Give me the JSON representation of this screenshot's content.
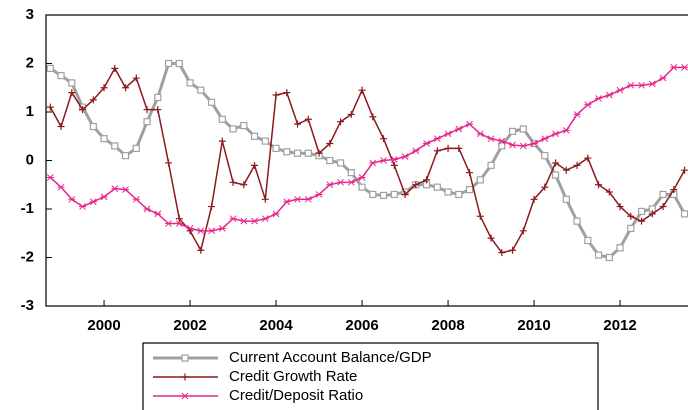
{
  "chart_data": {
    "type": "line",
    "x": [
      1998.75,
      1999,
      1999.25,
      1999.5,
      1999.75,
      2000,
      2000.25,
      2000.5,
      2000.75,
      2001,
      2001.25,
      2001.5,
      2001.75,
      2002,
      2002.25,
      2002.5,
      2002.75,
      2003,
      2003.25,
      2003.5,
      2003.75,
      2004,
      2004.25,
      2004.5,
      2004.75,
      2005,
      2005.25,
      2005.5,
      2005.75,
      2006,
      2006.25,
      2006.5,
      2006.75,
      2007,
      2007.25,
      2007.5,
      2007.75,
      2008,
      2008.25,
      2008.5,
      2008.75,
      2009,
      2009.25,
      2009.5,
      2009.75,
      2010,
      2010.25,
      2010.5,
      2010.75,
      2011,
      2011.25,
      2011.5,
      2011.75,
      2012,
      2012.25,
      2012.5,
      2012.75,
      2013,
      2013.25,
      2013.5
    ],
    "series": [
      {
        "name": "Current Account Balance/GDP",
        "color": "#a0a0a0",
        "marker": "square",
        "values": [
          1.9,
          1.75,
          1.6,
          1.1,
          0.7,
          0.45,
          0.3,
          0.1,
          0.25,
          0.8,
          1.3,
          2.0,
          2.0,
          1.6,
          1.45,
          1.2,
          0.85,
          0.65,
          0.72,
          0.5,
          0.4,
          0.25,
          0.18,
          0.15,
          0.15,
          0.1,
          0.0,
          -0.05,
          -0.25,
          -0.55,
          -0.7,
          -0.72,
          -0.7,
          -0.65,
          -0.5,
          -0.5,
          -0.55,
          -0.65,
          -0.7,
          -0.6,
          -0.4,
          -0.1,
          0.3,
          0.6,
          0.65,
          0.35,
          0.1,
          -0.3,
          -0.8,
          -1.25,
          -1.65,
          -1.95,
          -2.0,
          -1.8,
          -1.4,
          -1.05,
          -1.0,
          -0.7,
          -0.7,
          -1.1
        ]
      },
      {
        "name": "Credit Growth Rate",
        "color": "#8b1a1a",
        "marker": "plus",
        "values": [
          1.1,
          0.7,
          1.4,
          1.05,
          1.25,
          1.5,
          1.9,
          1.5,
          1.7,
          1.05,
          1.05,
          -0.05,
          -1.2,
          -1.45,
          -1.85,
          -0.95,
          0.4,
          -0.45,
          -0.5,
          -0.1,
          -0.8,
          1.35,
          1.4,
          0.75,
          0.85,
          0.15,
          0.35,
          0.8,
          0.95,
          1.45,
          0.9,
          0.45,
          -0.1,
          -0.7,
          -0.5,
          -0.4,
          0.2,
          0.25,
          0.25,
          -0.25,
          -1.15,
          -1.6,
          -1.9,
          -1.85,
          -1.45,
          -0.8,
          -0.55,
          -0.05,
          -0.2,
          -0.1,
          0.05,
          -0.5,
          -0.65,
          -0.95,
          -1.15,
          -1.25,
          -1.1,
          -0.95,
          -0.6,
          -0.2
        ]
      },
      {
        "name": "Credit/Deposit Ratio",
        "color": "#e8258f",
        "marker": "star",
        "values": [
          -0.35,
          -0.55,
          -0.8,
          -0.95,
          -0.85,
          -0.75,
          -0.58,
          -0.6,
          -0.8,
          -1.0,
          -1.1,
          -1.3,
          -1.3,
          -1.4,
          -1.45,
          -1.45,
          -1.4,
          -1.2,
          -1.25,
          -1.25,
          -1.2,
          -1.1,
          -0.85,
          -0.8,
          -0.8,
          -0.7,
          -0.5,
          -0.45,
          -0.45,
          -0.35,
          -0.05,
          0.0,
          0.02,
          0.08,
          0.2,
          0.35,
          0.45,
          0.55,
          0.65,
          0.75,
          0.55,
          0.45,
          0.4,
          0.32,
          0.3,
          0.35,
          0.45,
          0.55,
          0.62,
          0.95,
          1.15,
          1.28,
          1.35,
          1.45,
          1.55,
          1.55,
          1.58,
          1.7,
          1.92,
          1.92
        ]
      }
    ],
    "xlim": [
      1998.65,
      2013.58
    ],
    "xticks": [
      2000,
      2002,
      2004,
      2006,
      2008,
      2010,
      2012
    ],
    "ylim": [
      -3,
      3
    ],
    "yticks": [
      -3,
      -2,
      -1,
      0,
      1,
      2,
      3
    ]
  }
}
